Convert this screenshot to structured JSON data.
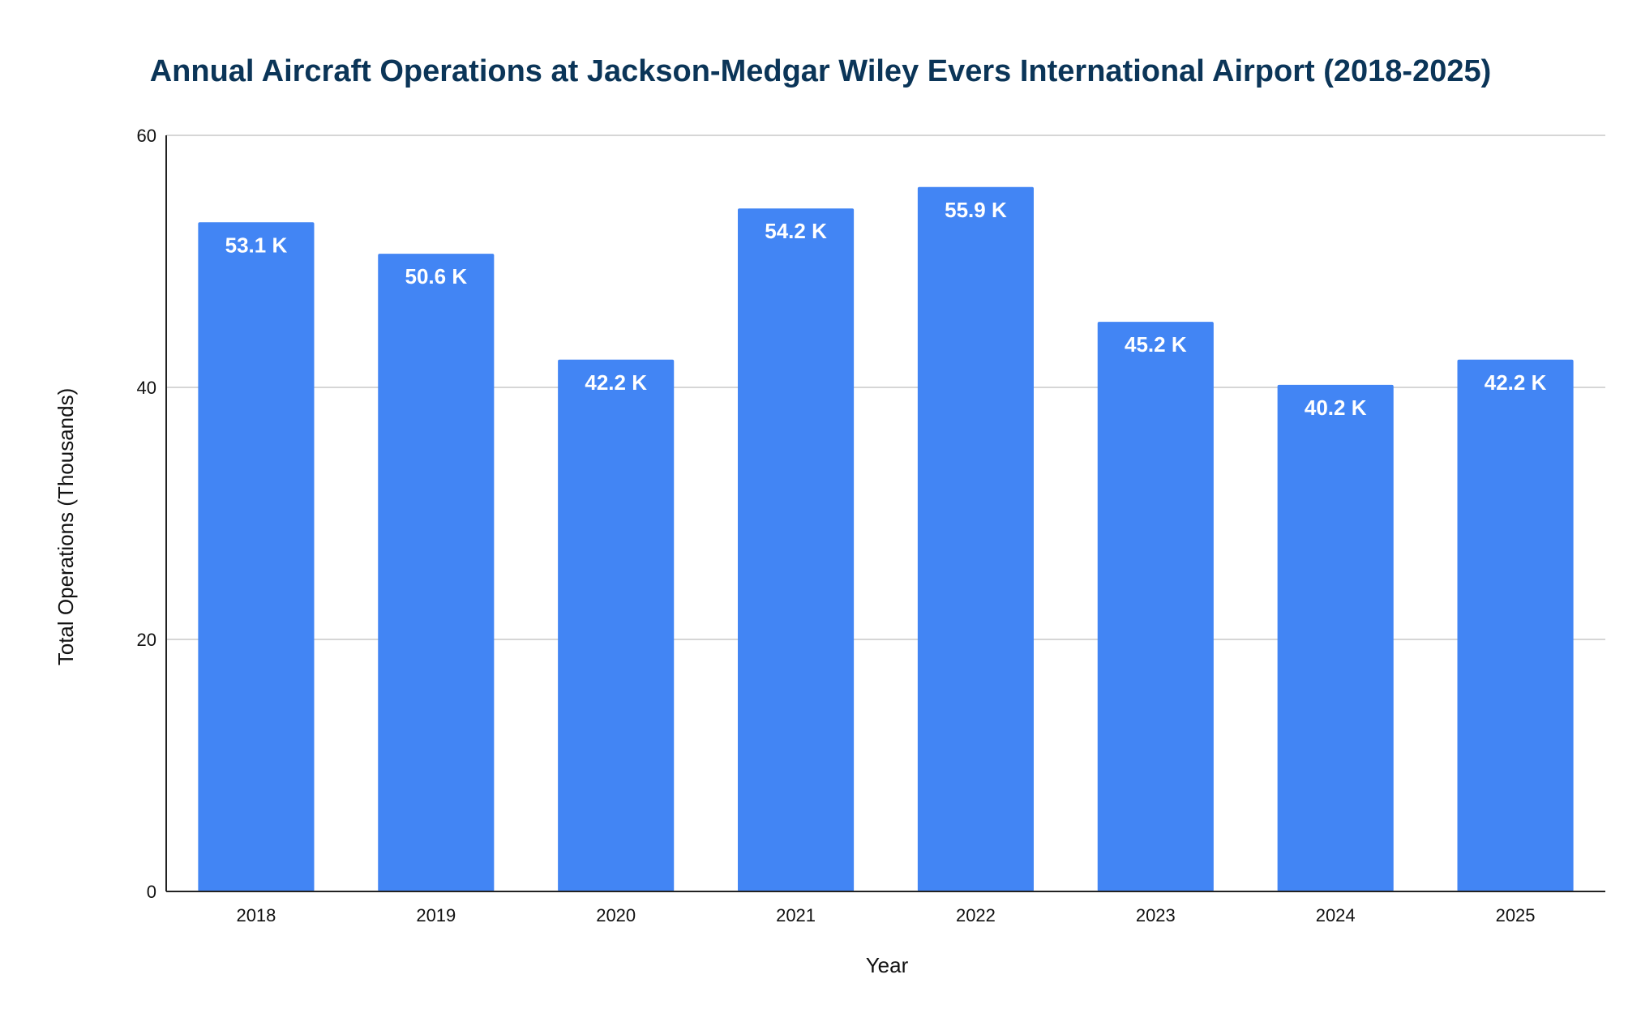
{
  "colors": {
    "title": "#0b3558",
    "bar": "#4285f4",
    "gridline": "#c8c8c8",
    "axis": "#222222",
    "text": "#111111",
    "data_label": "#ffffff"
  },
  "chart_data": {
    "type": "bar",
    "title": "Annual Aircraft Operations at Jackson-Medgar Wiley Evers International Airport (2018-2025)",
    "xlabel": "Year",
    "ylabel": "Total Operations (Thousands)",
    "categories": [
      "2018",
      "2019",
      "2020",
      "2021",
      "2022",
      "2023",
      "2024",
      "2025"
    ],
    "values": [
      53.1,
      50.6,
      42.2,
      54.2,
      55.9,
      45.2,
      40.2,
      42.2
    ],
    "data_labels": [
      "53.1 K",
      "50.6 K",
      "42.2 K",
      "54.2 K",
      "55.9 K",
      "45.2 K",
      "40.2 K",
      "42.2 K"
    ],
    "ylim": [
      0,
      60
    ],
    "yticks": [
      0,
      20,
      40,
      60
    ],
    "ytick_labels": [
      "0",
      "20",
      "40",
      "60"
    ],
    "grid": true,
    "legend": "none"
  }
}
